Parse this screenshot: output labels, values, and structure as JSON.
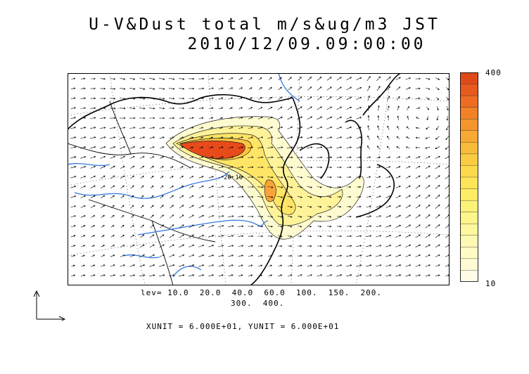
{
  "title": {
    "line1": "U-V&Dust total m/s&ug/m3 JST",
    "line2": "2010/12/09.09:00:00"
  },
  "colorbar": {
    "max_label": "400",
    "min_label": "10",
    "colors": [
      "#e04a1a",
      "#e85a1e",
      "#ef6d22",
      "#f28227",
      "#f5962d",
      "#f7a933",
      "#f9bb3a",
      "#fbcc42",
      "#fcda4b",
      "#fde557",
      "#fded66",
      "#fdf278",
      "#fef58b",
      "#fef79e",
      "#fef9b2",
      "#fefbc4",
      "#fffcd5",
      "#fffde6"
    ]
  },
  "map": {
    "contour_label": "20 10",
    "land_color": "#ffffff",
    "river_color": "#3377dd"
  },
  "levels": {
    "line1": "lev= 10.0  20.0  40.0  60.0  100.  150.  200.",
    "line2": "300.  400."
  },
  "units": "XUNIT = 6.000E+01, YUNIT = 6.000E+01"
}
